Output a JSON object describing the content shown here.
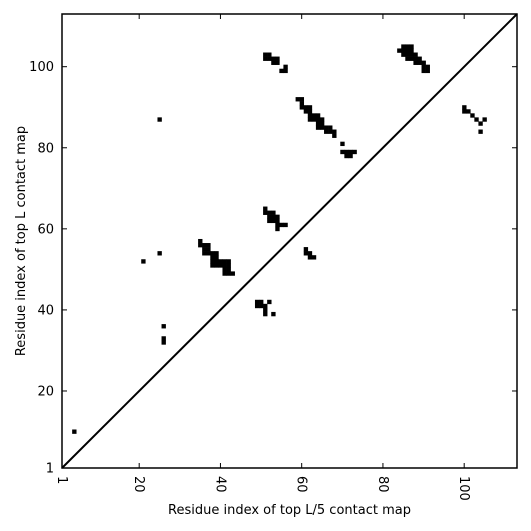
{
  "chart_data": {
    "type": "heatmap",
    "xlabel": "Residue index of top L/5 contact map",
    "ylabel": "Residue index of top L contact map",
    "xlim": [
      1,
      113
    ],
    "ylim": [
      1,
      113
    ],
    "xticks": [
      1,
      20,
      40,
      60,
      80,
      100
    ],
    "yticks": [
      1,
      20,
      40,
      60,
      80,
      100
    ],
    "diagonal": true,
    "grid": false,
    "color": "#000000",
    "cells": [
      [
        4,
        10
      ],
      [
        21,
        52
      ],
      [
        25,
        54
      ],
      [
        25,
        87
      ],
      [
        26,
        32
      ],
      [
        26,
        33
      ],
      [
        26,
        36
      ],
      [
        35,
        56
      ],
      [
        35,
        57
      ],
      [
        36,
        54
      ],
      [
        36,
        55
      ],
      [
        36,
        56
      ],
      [
        37,
        54
      ],
      [
        37,
        55
      ],
      [
        37,
        56
      ],
      [
        38,
        51
      ],
      [
        38,
        52
      ],
      [
        38,
        53
      ],
      [
        38,
        54
      ],
      [
        39,
        51
      ],
      [
        39,
        52
      ],
      [
        39,
        53
      ],
      [
        39,
        54
      ],
      [
        40,
        51
      ],
      [
        40,
        52
      ],
      [
        41,
        49
      ],
      [
        41,
        50
      ],
      [
        41,
        51
      ],
      [
        41,
        52
      ],
      [
        42,
        49
      ],
      [
        42,
        50
      ],
      [
        42,
        51
      ],
      [
        42,
        52
      ],
      [
        43,
        49
      ],
      [
        49,
        41
      ],
      [
        49,
        42
      ],
      [
        50,
        41
      ],
      [
        50,
        42
      ],
      [
        51,
        39
      ],
      [
        51,
        40
      ],
      [
        51,
        41
      ],
      [
        52,
        42
      ],
      [
        53,
        39
      ],
      [
        51,
        64
      ],
      [
        51,
        65
      ],
      [
        51,
        102
      ],
      [
        51,
        103
      ],
      [
        52,
        62
      ],
      [
        52,
        63
      ],
      [
        52,
        64
      ],
      [
        52,
        102
      ],
      [
        52,
        103
      ],
      [
        53,
        62
      ],
      [
        53,
        63
      ],
      [
        53,
        64
      ],
      [
        53,
        101
      ],
      [
        53,
        102
      ],
      [
        54,
        60
      ],
      [
        54,
        61
      ],
      [
        54,
        62
      ],
      [
        54,
        63
      ],
      [
        54,
        101
      ],
      [
        54,
        102
      ],
      [
        55,
        61
      ],
      [
        55,
        99
      ],
      [
        56,
        61
      ],
      [
        56,
        99
      ],
      [
        56,
        100
      ],
      [
        59,
        92
      ],
      [
        60,
        90
      ],
      [
        60,
        91
      ],
      [
        60,
        92
      ],
      [
        61,
        54
      ],
      [
        61,
        55
      ],
      [
        61,
        89
      ],
      [
        61,
        90
      ],
      [
        62,
        53
      ],
      [
        62,
        54
      ],
      [
        62,
        87
      ],
      [
        62,
        88
      ],
      [
        62,
        89
      ],
      [
        62,
        90
      ],
      [
        63,
        53
      ],
      [
        63,
        87
      ],
      [
        63,
        88
      ],
      [
        64,
        85
      ],
      [
        64,
        86
      ],
      [
        64,
        87
      ],
      [
        64,
        88
      ],
      [
        65,
        85
      ],
      [
        65,
        86
      ],
      [
        65,
        87
      ],
      [
        66,
        84
      ],
      [
        66,
        85
      ],
      [
        67,
        84
      ],
      [
        67,
        85
      ],
      [
        68,
        83
      ],
      [
        68,
        84
      ],
      [
        70,
        79
      ],
      [
        70,
        81
      ],
      [
        71,
        78
      ],
      [
        71,
        79
      ],
      [
        72,
        78
      ],
      [
        72,
        79
      ],
      [
        73,
        79
      ],
      [
        84,
        104
      ],
      [
        85,
        103
      ],
      [
        85,
        104
      ],
      [
        85,
        105
      ],
      [
        86,
        102
      ],
      [
        86,
        103
      ],
      [
        86,
        104
      ],
      [
        86,
        105
      ],
      [
        87,
        102
      ],
      [
        87,
        103
      ],
      [
        87,
        104
      ],
      [
        87,
        105
      ],
      [
        88,
        101
      ],
      [
        88,
        102
      ],
      [
        88,
        103
      ],
      [
        89,
        101
      ],
      [
        89,
        102
      ],
      [
        90,
        99
      ],
      [
        90,
        100
      ],
      [
        90,
        101
      ],
      [
        91,
        99
      ],
      [
        91,
        100
      ],
      [
        100,
        89
      ],
      [
        100,
        90
      ],
      [
        101,
        89
      ],
      [
        102,
        88
      ],
      [
        103,
        87
      ],
      [
        104,
        84
      ],
      [
        104,
        86
      ],
      [
        105,
        87
      ]
    ]
  }
}
